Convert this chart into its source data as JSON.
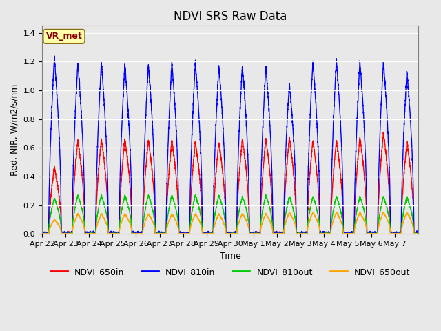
{
  "title": "NDVI SRS Raw Data",
  "xlabel": "Time",
  "ylabel": "Red, NIR, W/m2/s/nm",
  "ylim": [
    0.0,
    1.45
  ],
  "yticks": [
    0.0,
    0.2,
    0.4,
    0.6,
    0.8,
    1.0,
    1.2,
    1.4
  ],
  "annotation_text": "VR_met",
  "annotation_color": "#8B0000",
  "annotation_bg": "#FFFFAA",
  "bg_color": "#E8E8E8",
  "line_colors": {
    "NDVI_650in": "#FF0000",
    "NDVI_810in": "#0000FF",
    "NDVI_810out": "#00CC00",
    "NDVI_650out": "#FFA500"
  },
  "legend_labels": [
    "NDVI_650in",
    "NDVI_810in",
    "NDVI_810out",
    "NDVI_650out"
  ],
  "n_cycles": 16,
  "peak_650in": [
    0.46,
    0.65,
    0.66,
    0.66,
    0.65,
    0.65,
    0.64,
    0.64,
    0.66,
    0.66,
    0.67,
    0.65,
    0.65,
    0.67,
    0.7,
    0.64
  ],
  "peak_810in": [
    1.23,
    1.19,
    1.19,
    1.18,
    1.18,
    1.19,
    1.19,
    1.17,
    1.17,
    1.17,
    1.05,
    1.2,
    1.21,
    1.2,
    1.2,
    1.13
  ],
  "peak_810out": [
    0.25,
    0.27,
    0.27,
    0.27,
    0.27,
    0.27,
    0.27,
    0.27,
    0.26,
    0.27,
    0.26,
    0.26,
    0.26,
    0.26,
    0.26,
    0.26
  ],
  "peak_650out": [
    0.1,
    0.14,
    0.14,
    0.14,
    0.14,
    0.14,
    0.14,
    0.14,
    0.14,
    0.14,
    0.15,
    0.15,
    0.15,
    0.15,
    0.15,
    0.15
  ],
  "x_tick_labels": [
    "Apr 22",
    "Apr 23",
    "Apr 24",
    "Apr 25",
    "Apr 26",
    "Apr 27",
    "Apr 28",
    "Apr 29",
    "Apr 30",
    "May 1",
    "May 2",
    "May 3",
    "May 4",
    "May 5",
    "May 6",
    "May 7"
  ],
  "title_fontsize": 12,
  "label_fontsize": 9,
  "tick_fontsize": 8
}
